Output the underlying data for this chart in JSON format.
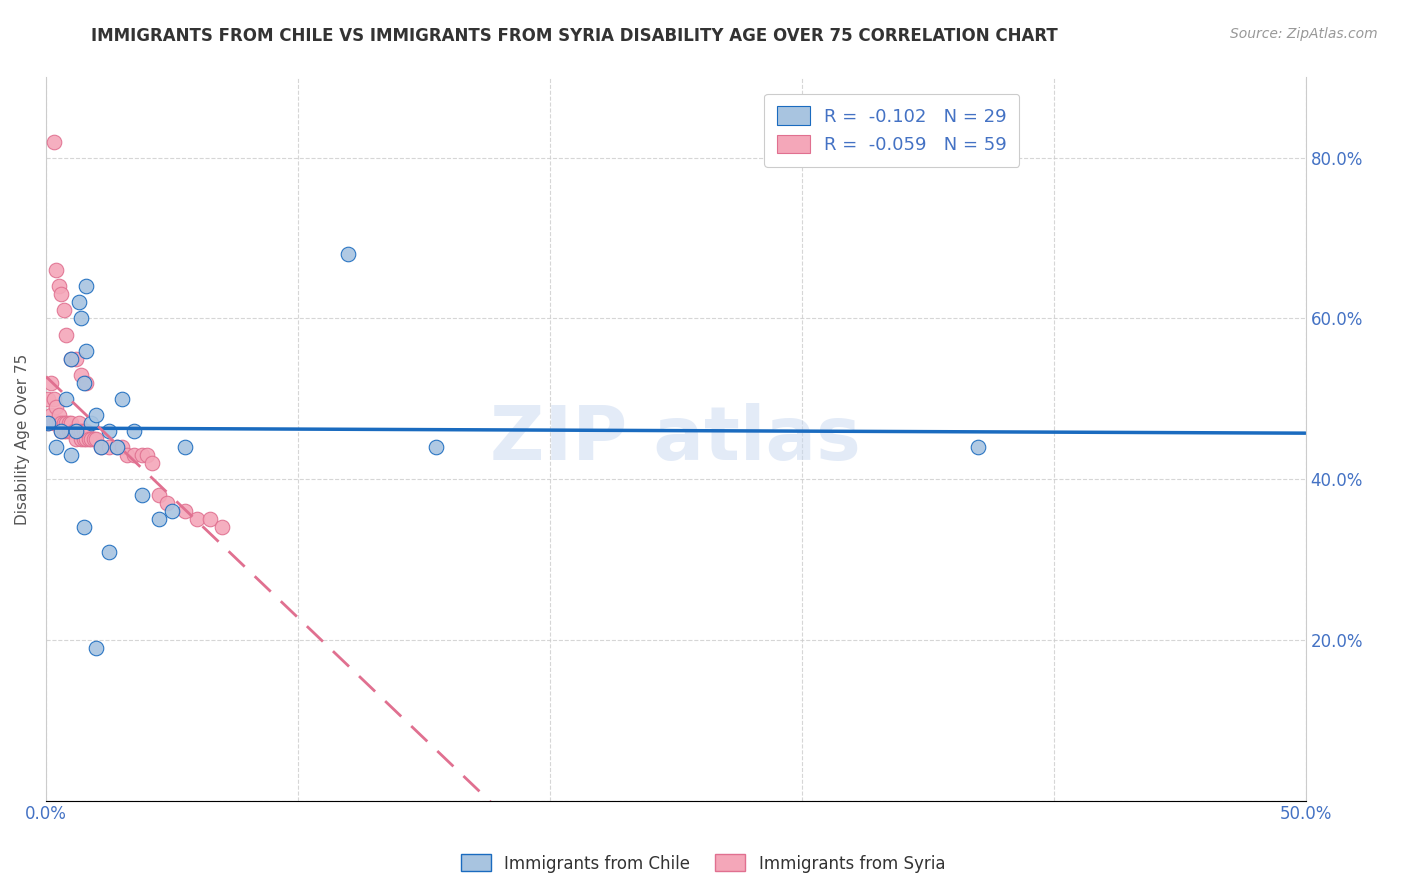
{
  "title": "IMMIGRANTS FROM CHILE VS IMMIGRANTS FROM SYRIA DISABILITY AGE OVER 75 CORRELATION CHART",
  "source": "Source: ZipAtlas.com",
  "ylabel": "Disability Age Over 75",
  "xlim": [
    0.0,
    0.5
  ],
  "ylim": [
    0.0,
    0.9
  ],
  "xtick_vals": [
    0.0,
    0.1,
    0.2,
    0.3,
    0.4,
    0.5
  ],
  "xtick_labels": [
    "0.0%",
    "",
    "",
    "",
    "",
    "50.0%"
  ],
  "ytick_vals": [
    0.0,
    0.2,
    0.4,
    0.6,
    0.8
  ],
  "ytick_labels": [
    "",
    "20.0%",
    "40.0%",
    "60.0%",
    "80.0%"
  ],
  "legend_r_chile": "R =  -0.102",
  "legend_n_chile": "N = 29",
  "legend_r_syria": "R =  -0.059",
  "legend_n_syria": "N = 59",
  "chile_color": "#a8c4e0",
  "syria_color": "#f4a7b9",
  "chile_line_color": "#1a6bbf",
  "syria_line_color": "#e07090",
  "chile_x": [
    0.001,
    0.004,
    0.006,
    0.008,
    0.01,
    0.01,
    0.012,
    0.013,
    0.014,
    0.015,
    0.016,
    0.016,
    0.018,
    0.02,
    0.022,
    0.025,
    0.028,
    0.03,
    0.035,
    0.038,
    0.045,
    0.05,
    0.055,
    0.12,
    0.155,
    0.02,
    0.025,
    0.015,
    0.37
  ],
  "chile_y": [
    0.47,
    0.44,
    0.46,
    0.5,
    0.43,
    0.55,
    0.46,
    0.62,
    0.6,
    0.52,
    0.64,
    0.56,
    0.47,
    0.48,
    0.44,
    0.46,
    0.44,
    0.5,
    0.46,
    0.38,
    0.35,
    0.36,
    0.44,
    0.68,
    0.44,
    0.19,
    0.31,
    0.34,
    0.44
  ],
  "syria_x": [
    0.001,
    0.001,
    0.002,
    0.002,
    0.003,
    0.003,
    0.004,
    0.004,
    0.005,
    0.005,
    0.006,
    0.006,
    0.007,
    0.007,
    0.008,
    0.008,
    0.009,
    0.009,
    0.01,
    0.01,
    0.011,
    0.012,
    0.013,
    0.013,
    0.014,
    0.014,
    0.015,
    0.015,
    0.016,
    0.016,
    0.017,
    0.018,
    0.019,
    0.02,
    0.022,
    0.025,
    0.028,
    0.03,
    0.032,
    0.035,
    0.038,
    0.04,
    0.042,
    0.045,
    0.048,
    0.055,
    0.06,
    0.065,
    0.07,
    0.003,
    0.004,
    0.005,
    0.006,
    0.007,
    0.008,
    0.01,
    0.012,
    0.014,
    0.016
  ],
  "syria_y": [
    0.47,
    0.5,
    0.48,
    0.52,
    0.47,
    0.5,
    0.47,
    0.49,
    0.47,
    0.48,
    0.46,
    0.47,
    0.46,
    0.47,
    0.46,
    0.47,
    0.46,
    0.47,
    0.46,
    0.47,
    0.46,
    0.45,
    0.46,
    0.47,
    0.45,
    0.46,
    0.45,
    0.46,
    0.45,
    0.46,
    0.45,
    0.45,
    0.45,
    0.45,
    0.44,
    0.44,
    0.44,
    0.44,
    0.43,
    0.43,
    0.43,
    0.43,
    0.42,
    0.38,
    0.37,
    0.36,
    0.35,
    0.35,
    0.34,
    0.82,
    0.66,
    0.64,
    0.63,
    0.61,
    0.58,
    0.55,
    0.55,
    0.53,
    0.52
  ]
}
